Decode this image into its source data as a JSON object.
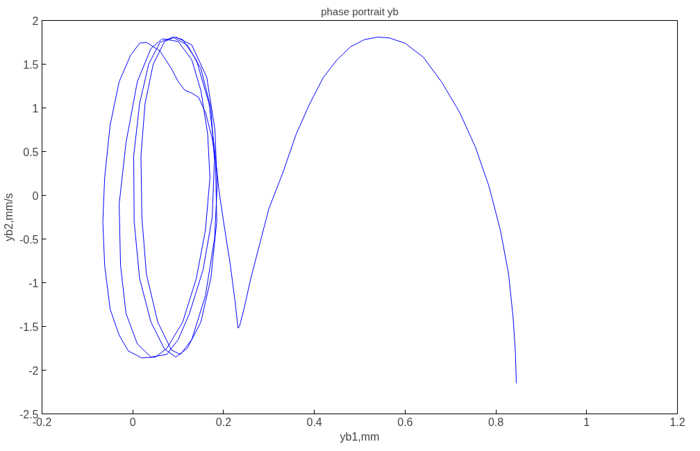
{
  "chart_data": {
    "type": "line",
    "title": "phase portrait yb",
    "xlabel": "yb1,mm",
    "ylabel": "yb2,mm/s",
    "xlim": [
      -0.2,
      1.2
    ],
    "ylim": [
      -2.5,
      2
    ],
    "xticks": [
      -0.2,
      0,
      0.2,
      0.4,
      0.6,
      0.8,
      1,
      1.2
    ],
    "yticks": [
      -2.5,
      -2,
      -1.5,
      -1,
      -0.5,
      0,
      0.5,
      1,
      1.5,
      2
    ],
    "grid": false,
    "marker": "none",
    "line_style": "solid",
    "series": [
      {
        "color": "#0000ff",
        "x": [
          0.845,
          0.843,
          0.838,
          0.828,
          0.81,
          0.785,
          0.755,
          0.72,
          0.68,
          0.64,
          0.6,
          0.565,
          0.54,
          0.51,
          0.48,
          0.45,
          0.42,
          0.39,
          0.36,
          0.33,
          0.3,
          0.28,
          0.26,
          0.245,
          0.235,
          0.232,
          0.225,
          0.215,
          0.2,
          0.19,
          0.185,
          0.175,
          0.16,
          0.145,
          0.13,
          0.115,
          0.1,
          0.085,
          0.06,
          0.03,
          0.015,
          -0.005,
          -0.03,
          -0.05,
          -0.062,
          -0.066,
          -0.062,
          -0.05,
          -0.03,
          -0.01,
          0.02,
          0.05,
          0.075,
          0.11,
          0.14,
          0.16,
          0.17,
          0.165,
          0.15,
          0.13,
          0.1,
          0.065,
          0.04,
          0.01,
          -0.015,
          -0.03,
          -0.027,
          -0.015,
          0.01,
          0.04,
          0.075,
          0.1,
          0.125,
          0.155,
          0.175,
          0.18,
          0.172,
          0.15,
          0.12,
          0.088,
          0.06,
          0.035,
          0.015,
          0.002,
          0.003,
          0.015,
          0.04,
          0.07,
          0.095,
          0.12,
          0.15,
          0.172,
          0.185,
          0.182,
          0.168,
          0.14,
          0.11,
          0.093,
          0.07,
          0.045,
          0.027,
          0.018,
          0.02,
          0.03,
          0.055,
          0.085,
          0.105,
          0.13,
          0.16,
          0.18,
          0.186,
          0.181,
          0.163,
          0.13,
          0.095
        ],
        "values": [
          -2.15,
          -1.8,
          -1.4,
          -0.9,
          -0.4,
          0.1,
          0.55,
          0.95,
          1.3,
          1.58,
          1.74,
          1.8,
          1.81,
          1.78,
          1.7,
          1.55,
          1.35,
          1.05,
          0.7,
          0.25,
          -0.15,
          -0.55,
          -0.95,
          -1.3,
          -1.5,
          -1.52,
          -1.2,
          -0.8,
          -0.3,
          0.05,
          0.3,
          0.65,
          0.95,
          1.12,
          1.17,
          1.2,
          1.3,
          1.45,
          1.65,
          1.75,
          1.74,
          1.6,
          1.3,
          0.8,
          0.2,
          -0.3,
          -0.8,
          -1.3,
          -1.6,
          -1.78,
          -1.86,
          -1.85,
          -1.75,
          -1.45,
          -0.95,
          -0.4,
          0.2,
          0.7,
          1.2,
          1.55,
          1.76,
          1.79,
          1.68,
          1.3,
          0.6,
          -0.1,
          -0.8,
          -1.35,
          -1.7,
          -1.85,
          -1.82,
          -1.65,
          -1.35,
          -0.85,
          -0.25,
          0.4,
          1.0,
          1.45,
          1.72,
          1.81,
          1.75,
          1.5,
          1.05,
          0.45,
          -0.3,
          -0.95,
          -1.45,
          -1.76,
          -1.85,
          -1.75,
          -1.45,
          -0.95,
          -0.3,
          0.45,
          1.05,
          1.55,
          1.78,
          1.81,
          1.76,
          1.5,
          1.05,
          0.45,
          -0.25,
          -0.9,
          -1.45,
          -1.77,
          -1.82,
          -1.65,
          -1.15,
          -0.5,
          0.1,
          0.75,
          1.35,
          1.72,
          1.81
        ]
      }
    ]
  }
}
